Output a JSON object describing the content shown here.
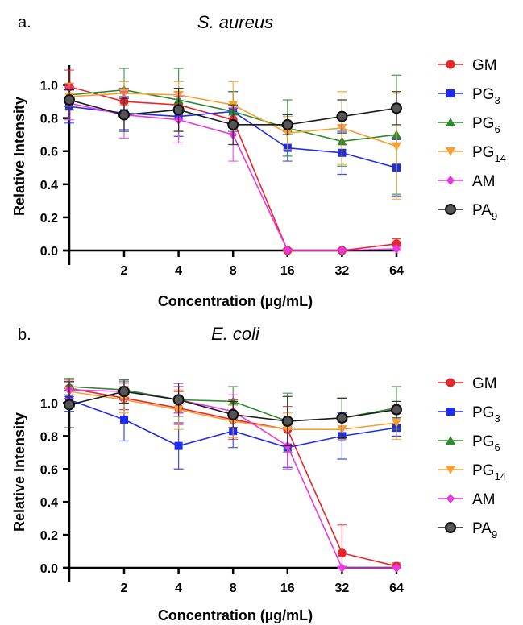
{
  "chart_data": [
    {
      "panel": "a.",
      "title": "S. aureus",
      "type": "line",
      "xlabel": "Concentration (µg/mL)",
      "ylabel": "Relative Intensity",
      "x_ticks": [
        "2",
        "4",
        "8",
        "16",
        "32",
        "64"
      ],
      "ylim": [
        0,
        1.1
      ],
      "y_ticks": [
        "0.0",
        "0.2",
        "0.4",
        "0.6",
        "0.8",
        "1.0"
      ],
      "x": [
        0,
        2,
        4,
        8,
        16,
        32,
        64
      ],
      "series": [
        {
          "name": "GM",
          "name_main": "GM",
          "name_sub": "",
          "color": "#e8262b",
          "marker": "circle",
          "values": [
            0.99,
            0.9,
            0.88,
            0.79,
            0.0,
            0.0,
            0.04
          ],
          "errors": [
            0.1,
            0.08,
            0.08,
            0.07,
            0.01,
            0.01,
            0.03
          ]
        },
        {
          "name": "PG3",
          "name_main": "PG",
          "name_sub": "3",
          "color": "#1e2cf0",
          "marker": "square",
          "values": [
            0.87,
            0.83,
            0.81,
            0.84,
            0.62,
            0.59,
            0.5
          ],
          "errors": [
            0.1,
            0.1,
            0.12,
            0.12,
            0.08,
            0.13,
            0.17
          ]
        },
        {
          "name": "PG6",
          "name_main": "PG",
          "name_sub": "6",
          "color": "#2e8a2e",
          "marker": "triangle-up",
          "values": [
            0.94,
            0.97,
            0.91,
            0.84,
            0.74,
            0.66,
            0.7
          ],
          "errors": [
            0.07,
            0.13,
            0.19,
            0.12,
            0.17,
            0.15,
            0.36
          ]
        },
        {
          "name": "PG14",
          "name_main": "PG",
          "name_sub": "14",
          "color": "#f5a031",
          "marker": "triangle-down",
          "values": [
            0.93,
            0.95,
            0.94,
            0.88,
            0.71,
            0.74,
            0.63
          ],
          "errors": [
            0.08,
            0.07,
            0.08,
            0.14,
            0.1,
            0.22,
            0.32
          ]
        },
        {
          "name": "AM",
          "name_main": "AM",
          "name_sub": "",
          "color": "#e83ae0",
          "marker": "diamond",
          "values": [
            0.89,
            0.82,
            0.79,
            0.7,
            0.0,
            0.0,
            0.01
          ],
          "errors": [
            0.1,
            0.14,
            0.14,
            0.16,
            0.01,
            0.01,
            0.01
          ]
        },
        {
          "name": "PA9",
          "name_main": "PA",
          "name_sub": "9",
          "color": "#1a1a1a",
          "marker": "circle-gray",
          "values": [
            0.91,
            0.82,
            0.85,
            0.76,
            0.76,
            0.81,
            0.86
          ],
          "errors": [
            0.06,
            0.1,
            0.13,
            0.12,
            0.06,
            0.1,
            0.1
          ]
        }
      ]
    },
    {
      "panel": "b.",
      "title": "E. coli",
      "type": "line",
      "xlabel": "Concentration (µg/mL)",
      "ylabel": "Relative Intensity",
      "x_ticks": [
        "2",
        "4",
        "8",
        "16",
        "32",
        "64"
      ],
      "ylim": [
        0,
        1.1
      ],
      "y_ticks": [
        "0.0",
        "0.2",
        "0.4",
        "0.6",
        "0.8",
        "1.0"
      ],
      "x": [
        0,
        2,
        4,
        8,
        16,
        32,
        64
      ],
      "series": [
        {
          "name": "GM",
          "name_main": "GM",
          "name_sub": "",
          "color": "#e8262b",
          "marker": "circle",
          "values": [
            1.09,
            1.03,
            0.97,
            0.9,
            0.84,
            0.09,
            0.01
          ],
          "errors": [
            0.05,
            0.07,
            0.1,
            0.12,
            0.14,
            0.17,
            0.02
          ]
        },
        {
          "name": "PG3",
          "name_main": "PG",
          "name_sub": "3",
          "color": "#1e2cf0",
          "marker": "square",
          "values": [
            1.02,
            0.9,
            0.74,
            0.83,
            0.73,
            0.8,
            0.85
          ],
          "errors": [
            0.07,
            0.13,
            0.14,
            0.1,
            0.12,
            0.14,
            0.05
          ]
        },
        {
          "name": "PG6",
          "name_main": "PG",
          "name_sub": "6",
          "color": "#2e8a2e",
          "marker": "triangle-up",
          "values": [
            1.1,
            1.08,
            1.02,
            1.01,
            0.89,
            0.91,
            0.97
          ],
          "errors": [
            0.05,
            0.05,
            0.08,
            0.09,
            0.17,
            0.12,
            0.13
          ]
        },
        {
          "name": "PG14",
          "name_main": "PG",
          "name_sub": "14",
          "color": "#f5a031",
          "marker": "triangle-down",
          "values": [
            1.07,
            1.02,
            0.96,
            0.89,
            0.84,
            0.84,
            0.88
          ],
          "errors": [
            0.06,
            0.08,
            0.12,
            0.1,
            0.1,
            0.06,
            0.1
          ]
        },
        {
          "name": "AM",
          "name_main": "AM",
          "name_sub": "",
          "color": "#e83ae0",
          "marker": "diamond",
          "values": [
            1.08,
            1.07,
            1.02,
            0.95,
            0.74,
            0.0,
            0.0
          ],
          "errors": [
            0.05,
            0.05,
            0.08,
            0.1,
            0.14,
            0.01,
            0.01
          ]
        },
        {
          "name": "PA9",
          "name_main": "PA",
          "name_sub": "9",
          "color": "#1a1a1a",
          "marker": "circle-gray",
          "values": [
            0.99,
            1.07,
            1.02,
            0.93,
            0.89,
            0.91,
            0.96
          ],
          "errors": [
            0.14,
            0.07,
            0.1,
            0.08,
            0.15,
            0.12,
            0.05
          ]
        }
      ]
    }
  ]
}
